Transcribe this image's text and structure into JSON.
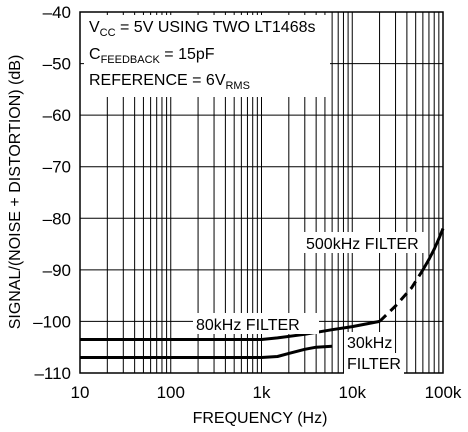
{
  "chart_data": {
    "type": "line",
    "xlabel": "FREQUENCY (Hz)",
    "ylabel": "SIGNAL/(NOISE + DISTORTION) (dB)",
    "x_scale": "log",
    "xlim": [
      10,
      100000
    ],
    "ylim": [
      -110,
      -40
    ],
    "grid": true,
    "x_ticks": [
      10,
      100,
      1000,
      10000,
      100000
    ],
    "x_tick_labels": [
      "10",
      "100",
      "1k",
      "10k",
      "100k"
    ],
    "y_ticks": [
      -40,
      -50,
      -60,
      -70,
      -80,
      -90,
      -100,
      -110
    ],
    "y_tick_labels": [
      "–40",
      "–50",
      "–60",
      "–70",
      "–80",
      "–90",
      "–100",
      "–110"
    ],
    "annotation_lines": [
      {
        "parts": [
          {
            "text": "V"
          },
          {
            "text": "CC",
            "sub": true
          },
          {
            "text": " = 5V USING TWO LT1468s"
          }
        ]
      },
      {
        "parts": [
          {
            "text": "C"
          },
          {
            "text": "FEEDBACK",
            "sub": true
          },
          {
            "text": " = 15pF"
          }
        ]
      },
      {
        "parts": [
          {
            "text": "REFERENCE = 6V"
          },
          {
            "text": "RMS",
            "sub": true
          }
        ]
      }
    ],
    "series_labels": [
      "80kHz FILTER",
      "30kHz",
      "FILTER",
      "500kHz FILTER"
    ],
    "series": [
      {
        "name": "80kHz FILTER",
        "x": [
          10,
          100,
          1000,
          1500,
          3000,
          6000,
          10000,
          20000
        ],
        "y": [
          -103.5,
          -103.5,
          -103.5,
          -103.2,
          -102.5,
          -101.6,
          -101,
          -100
        ]
      },
      {
        "name": "500kHz FILTER",
        "dashed": true,
        "x": [
          20000,
          30000,
          45000,
          60000
        ],
        "y": [
          -100,
          -97,
          -93.5,
          -90
        ]
      },
      {
        "name": "500kHz FILTER",
        "x": [
          60000,
          70000,
          80000,
          90000,
          100000
        ],
        "y": [
          -90,
          -88,
          -86,
          -84,
          -82
        ]
      },
      {
        "name": "30kHz FILTER",
        "x": [
          10,
          100,
          1000,
          1500,
          2000,
          3000,
          4000,
          6000
        ],
        "y": [
          -107,
          -107,
          -107,
          -106.8,
          -106.2,
          -105.4,
          -105,
          -104.8
        ]
      }
    ]
  }
}
